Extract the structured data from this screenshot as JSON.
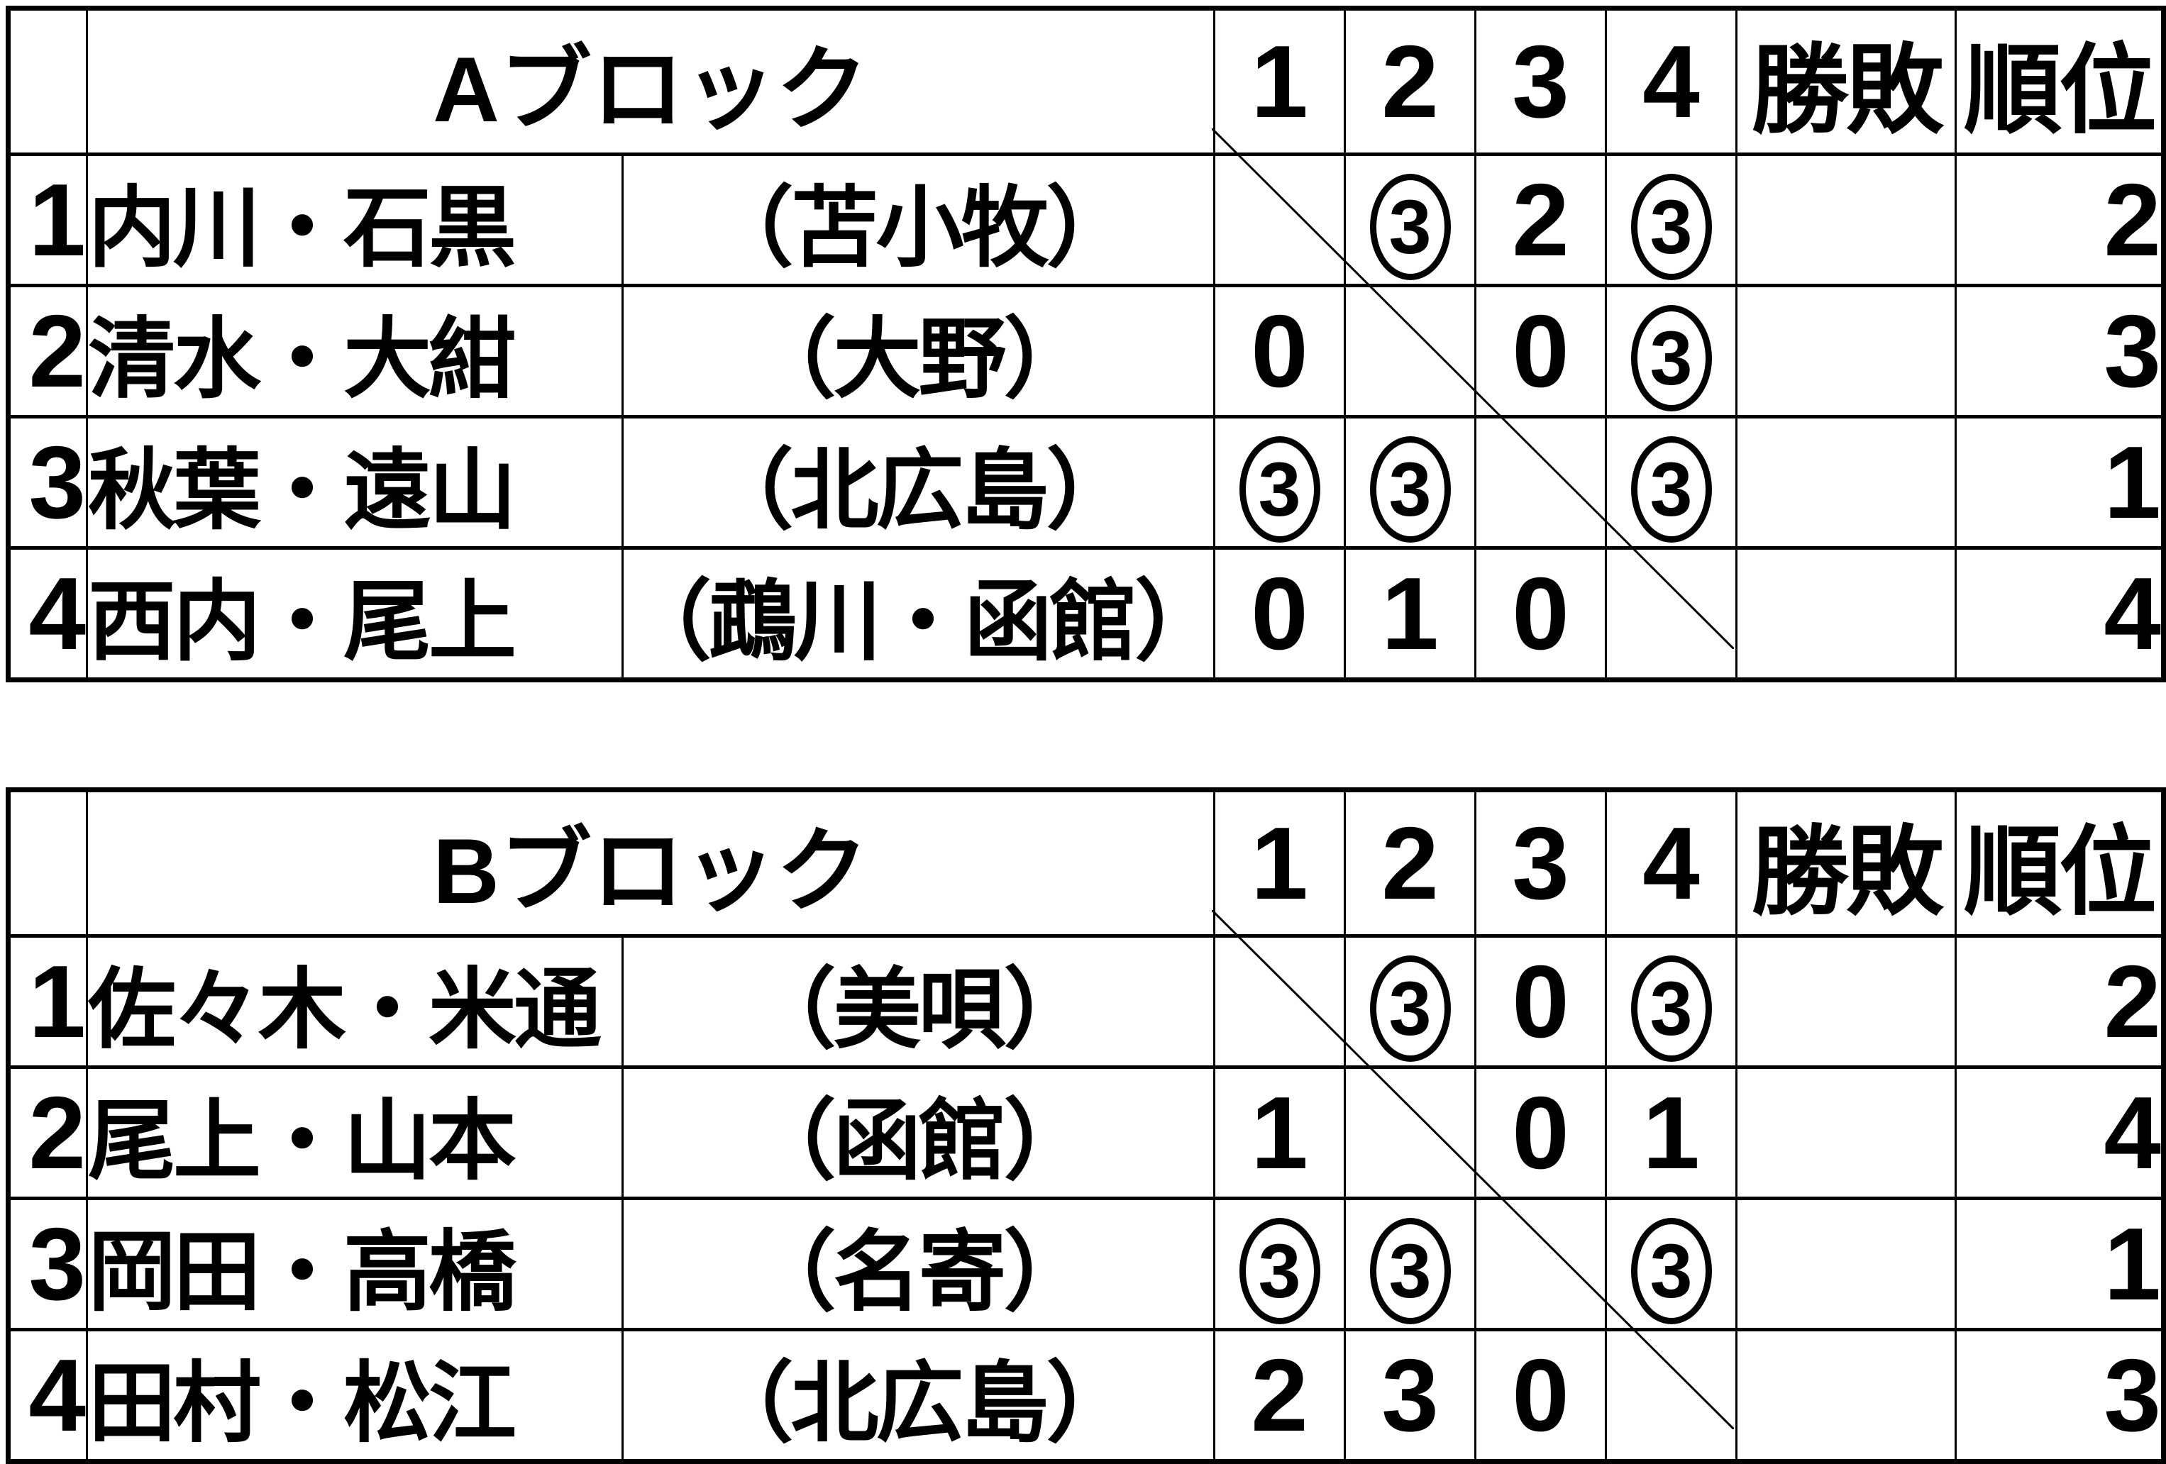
{
  "page": {
    "background": "#ffffff",
    "line_color": "#000000",
    "circled_score_glyph": "③"
  },
  "tables": [
    {
      "block_label": "Aブロック",
      "col_headers": [
        "1",
        "2",
        "3",
        "4",
        "勝敗",
        "順位"
      ],
      "rows": [
        {
          "num": "1",
          "name": "内川・石黒",
          "location": "（苫小牧）",
          "scores": [
            "",
            "③",
            "2",
            "③"
          ],
          "record": "",
          "rank": "2"
        },
        {
          "num": "2",
          "name": "清水・大紺",
          "location": "（大野）",
          "scores": [
            "0",
            "",
            "0",
            "③"
          ],
          "record": "",
          "rank": "3"
        },
        {
          "num": "3",
          "name": "秋葉・遠山",
          "location": "（北広島）",
          "scores": [
            "③",
            "③",
            "",
            "③"
          ],
          "record": "",
          "rank": "1"
        },
        {
          "num": "4",
          "name": "西内・尾上",
          "location": "（鵡川・函館）",
          "scores": [
            "0",
            "1",
            "0",
            ""
          ],
          "record": "",
          "rank": "4"
        }
      ]
    },
    {
      "block_label": "Bブロック",
      "col_headers": [
        "1",
        "2",
        "3",
        "4",
        "勝敗",
        "順位"
      ],
      "rows": [
        {
          "num": "1",
          "name": "佐々木・米通",
          "location": "（美唄）",
          "scores": [
            "",
            "③",
            "0",
            "③"
          ],
          "record": "",
          "rank": "2"
        },
        {
          "num": "2",
          "name": "尾上・山本",
          "location": "（函館）",
          "scores": [
            "1",
            "",
            "0",
            "1"
          ],
          "record": "",
          "rank": "4"
        },
        {
          "num": "3",
          "name": "岡田・高橋",
          "location": "（名寄）",
          "scores": [
            "③",
            "③",
            "",
            "③"
          ],
          "record": "",
          "rank": "1"
        },
        {
          "num": "4",
          "name": "田村・松江",
          "location": "（北広島）",
          "scores": [
            "2",
            "3",
            "0",
            ""
          ],
          "record": "",
          "rank": "3"
        }
      ]
    }
  ]
}
